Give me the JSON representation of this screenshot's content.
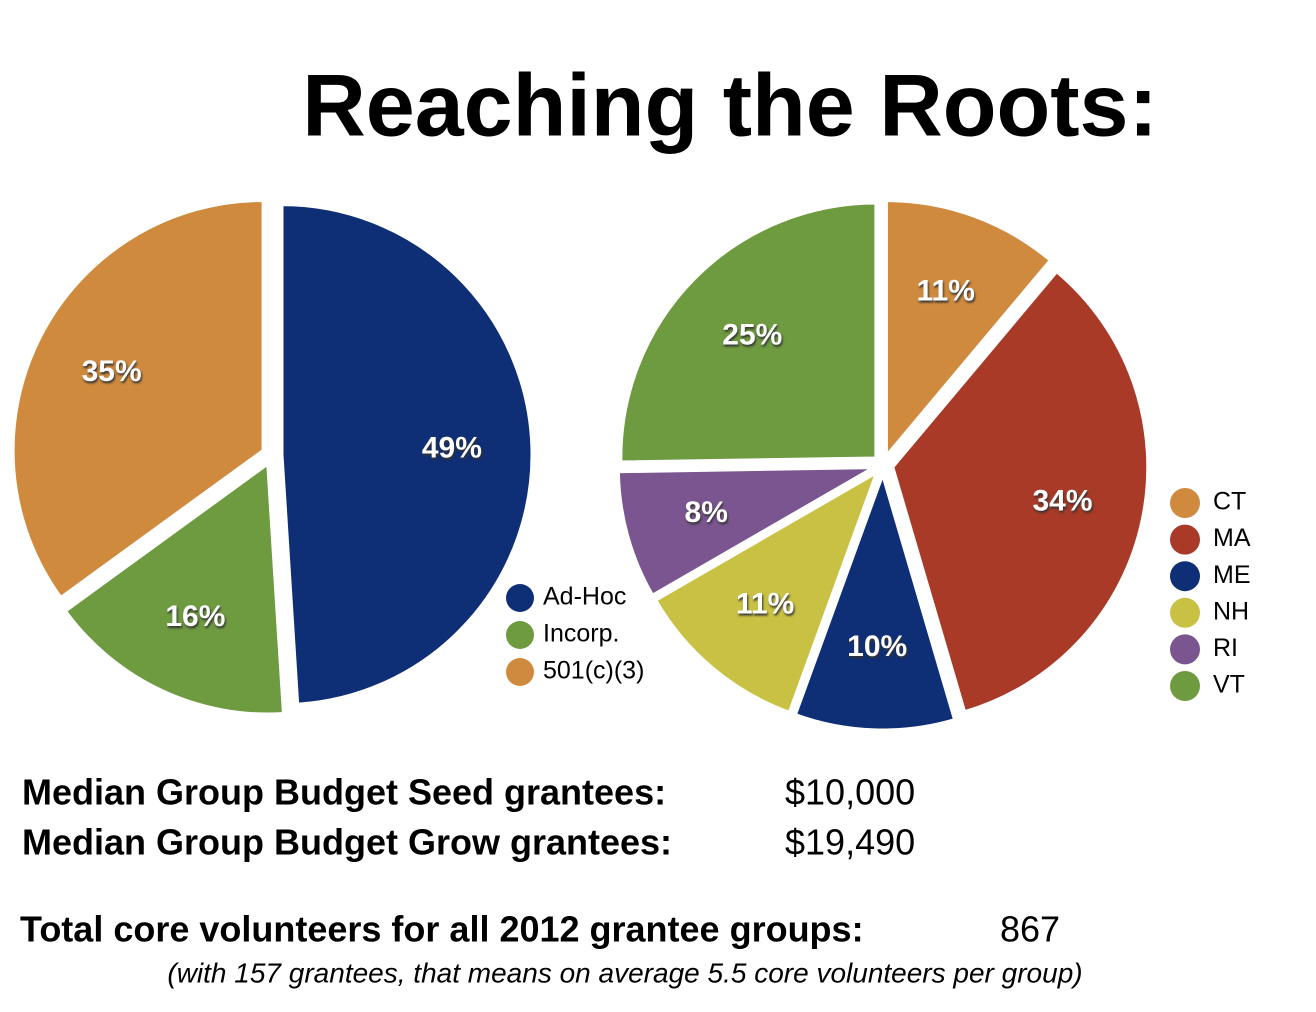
{
  "title": "Reaching the Roots:",
  "chart_data": [
    {
      "type": "pie",
      "categories": [
        "Ad-Hoc",
        "Incorp.",
        "501(c)(3)"
      ],
      "values": [
        49,
        16,
        35
      ],
      "value_labels": [
        "49%",
        "16%",
        "35%"
      ],
      "colors": [
        "#0e2f76",
        "#6e9a40",
        "#cf8a3e"
      ]
    },
    {
      "type": "pie",
      "categories": [
        "CT",
        "MA",
        "ME",
        "NH",
        "RI",
        "VT"
      ],
      "values": [
        11,
        34,
        10,
        11,
        8,
        25
      ],
      "value_labels": [
        "11%",
        "34%",
        "10%",
        "11%",
        "8%",
        "25%"
      ],
      "colors": [
        "#cf8a3e",
        "#a83a27",
        "#0e2f76",
        "#c8c144",
        "#7a5590",
        "#6e9a40"
      ]
    }
  ],
  "stats": {
    "seed_label": "Median Group Budget Seed grantees:",
    "seed_value": "$10,000",
    "grow_label": "Median Group Budget Grow grantees:",
    "grow_value": "$19,490",
    "total_label": "Total core volunteers for all 2012 grantee groups:",
    "total_value": "867",
    "note": "(with 157 grantees, that means on average 5.5 core volunteers per group)"
  }
}
